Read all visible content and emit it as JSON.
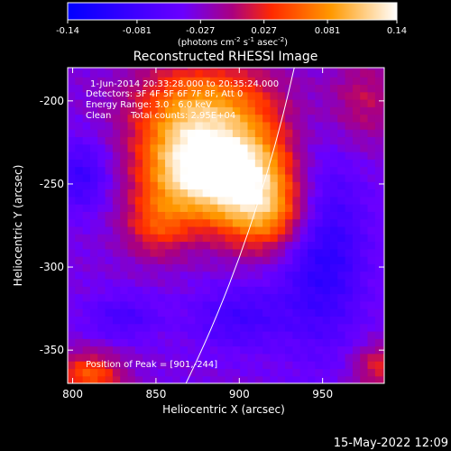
{
  "chart_data": {
    "type": "heatmap",
    "title": "Reconstructed RHESSI Image",
    "xlabel": "Heliocentric X (arcsec)",
    "ylabel": "Heliocentric Y (arcsec)",
    "xlim": [
      797,
      987
    ],
    "ylim": [
      -370,
      -180
    ],
    "x_ticks": [
      800,
      850,
      900,
      950
    ],
    "y_ticks": [
      -200,
      -250,
      -300,
      -350
    ],
    "colorbar": {
      "range": [
        -0.14,
        0.14
      ],
      "ticks": [
        "-0.14",
        "-0.081",
        "-0.027",
        "0.027",
        "0.081",
        "0.14"
      ],
      "unit_label_parts": [
        "(photons cm",
        "-2",
        " s",
        "-1",
        " asec",
        "-2",
        ")"
      ]
    },
    "annotations": [
      "1-Jun-2014 20:33:28.000 to 20:35:24.000",
      "Detectors: 3F 4F 5F 6F 7F 8F, Att 0",
      "Energy Range: 3.0 - 6.0 keV",
      "Clean",
      "Total counts: 2.95E+04"
    ],
    "peak_label": "Position of Peak = [901,-244]",
    "peak": [
      901,
      -244
    ],
    "limb_curve": [
      [
        868,
        -370
      ],
      [
        905,
        -280
      ],
      [
        933,
        -180
      ]
    ]
  },
  "footer": {
    "date": "15-May-2022 12:09"
  },
  "colors": {
    "background": "#000000",
    "text": "#ffffff"
  }
}
